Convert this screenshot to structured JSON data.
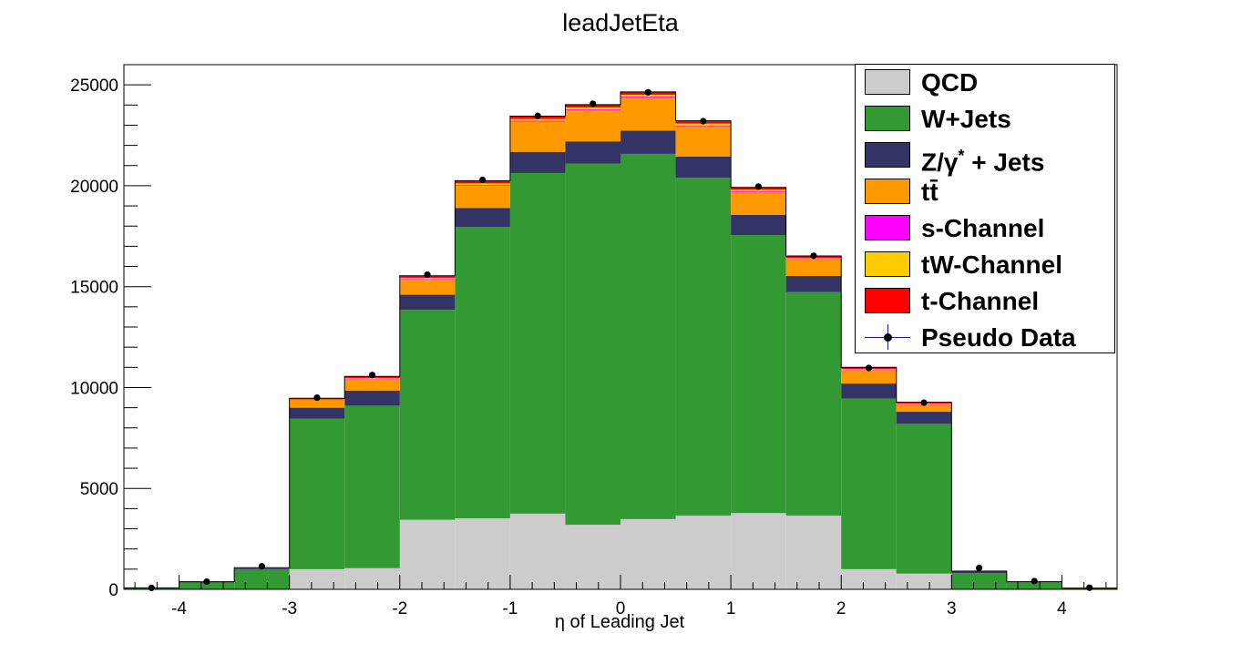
{
  "chart_data": {
    "type": "bar",
    "title": "leadJetEta",
    "xlabel": "η of Leading Jet",
    "ylabel": "",
    "xlim": [
      -4.5,
      4.5
    ],
    "ylim": [
      0,
      26000
    ],
    "x_ticks": [
      -4,
      -3,
      -2,
      -1,
      0,
      1,
      2,
      3,
      4
    ],
    "y_ticks": [
      0,
      5000,
      10000,
      15000,
      20000,
      25000
    ],
    "bin_edges": [
      -4.5,
      -4,
      -3.5,
      -3,
      -2.5,
      -2,
      -1.5,
      -1,
      -0.5,
      0,
      0.5,
      1,
      1.5,
      2,
      2.5,
      3,
      3.5,
      4,
      4.5
    ],
    "stacked": true,
    "series": [
      {
        "name": "QCD",
        "color": "#cccccc",
        "values": [
          0,
          0,
          0,
          1000,
          1050,
          3450,
          3520,
          3750,
          3200,
          3480,
          3650,
          3780,
          3650,
          1000,
          780,
          0,
          0,
          0
        ]
      },
      {
        "name": "W+Jets",
        "color": "#339933",
        "values": [
          60,
          340,
          1000,
          7450,
          8050,
          10400,
          14430,
          16880,
          17900,
          18100,
          16750,
          13780,
          11080,
          8450,
          7420,
          800,
          350,
          50
        ]
      },
      {
        "name": "Z/γ* + Jets",
        "color": "#333366",
        "values": [
          10,
          30,
          50,
          550,
          750,
          750,
          950,
          1050,
          1100,
          1150,
          1050,
          1000,
          800,
          750,
          600,
          80,
          20,
          5
        ]
      },
      {
        "name": "tt̄",
        "color": "#ff9900",
        "values": [
          5,
          10,
          20,
          350,
          550,
          750,
          1100,
          1500,
          1550,
          1650,
          1500,
          1120,
          800,
          650,
          350,
          20,
          10,
          5
        ]
      },
      {
        "name": "s-Channel",
        "color": "#ff00ff",
        "values": [
          0,
          0,
          0,
          20,
          20,
          30,
          40,
          40,
          40,
          40,
          40,
          40,
          30,
          20,
          20,
          0,
          0,
          0
        ]
      },
      {
        "name": "tW-Channel",
        "color": "#ffcc00",
        "values": [
          0,
          0,
          0,
          40,
          50,
          60,
          80,
          90,
          90,
          90,
          90,
          80,
          60,
          50,
          40,
          0,
          0,
          0
        ]
      },
      {
        "name": "t-Channel",
        "color": "#ff0000",
        "values": [
          0,
          0,
          0,
          60,
          80,
          100,
          130,
          140,
          140,
          140,
          140,
          120,
          100,
          80,
          60,
          0,
          0,
          0
        ]
      }
    ],
    "pseudo_data": {
      "name": "Pseudo Data",
      "x": [
        -4.25,
        -3.75,
        -3.25,
        -2.75,
        -2.25,
        -1.75,
        -1.25,
        -0.75,
        -0.25,
        0.25,
        0.75,
        1.25,
        1.75,
        2.25,
        2.75,
        3.25,
        3.75,
        4.25
      ],
      "y": [
        70,
        380,
        1140,
        9500,
        10620,
        15590,
        20290,
        23460,
        24060,
        24630,
        23200,
        19960,
        16530,
        10970,
        9250,
        1060,
        410,
        80
      ],
      "err": [
        10,
        20,
        35,
        95,
        100,
        125,
        145,
        155,
        155,
        157,
        152,
        140,
        130,
        105,
        95,
        35,
        20,
        10
      ]
    },
    "legend_placement": "top-right",
    "grid": false
  }
}
